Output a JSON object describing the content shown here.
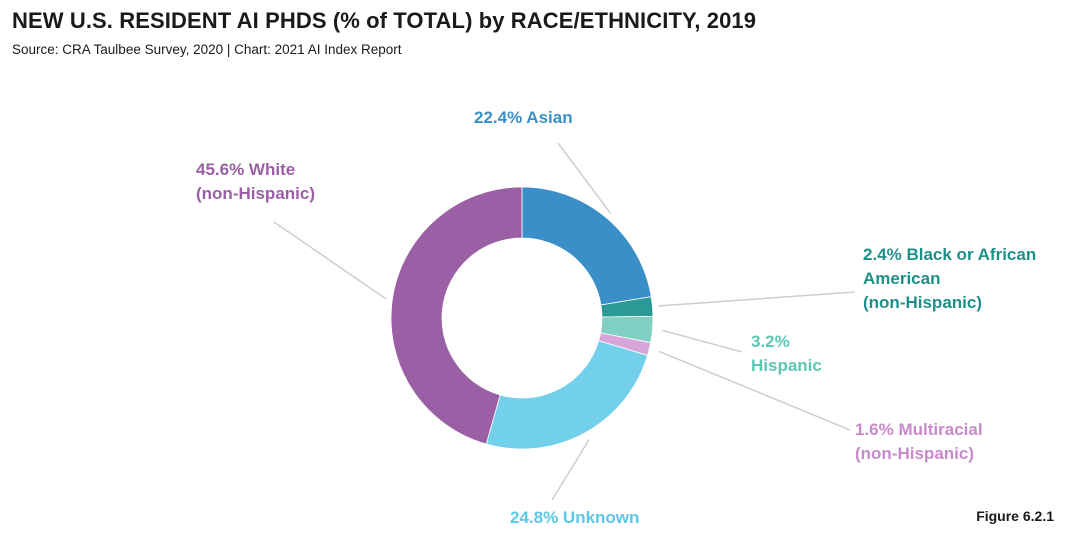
{
  "header": {
    "title": "NEW U.S. RESIDENT AI PHDS (% of TOTAL) by RACE/ETHNICITY, 2019",
    "subtitle": "Source: CRA Taulbee Survey, 2020 | Chart: 2021 AI Index Report"
  },
  "figure_label": "Figure 6.2.1",
  "chart_data": {
    "type": "pie",
    "variant": "donut",
    "title": "NEW U.S. RESIDENT AI PHDS (% of TOTAL) by RACE/ETHNICITY, 2019",
    "unit": "%",
    "slices": [
      {
        "name": "Asian",
        "value": 22.4,
        "color": "#3a8fc9",
        "label_lines": [
          "22.4% Asian"
        ]
      },
      {
        "name": "Black or African American (non-Hispanic)",
        "value": 2.4,
        "color": "#2a9a96",
        "label_lines": [
          "2.4% Black or African",
          "American",
          "(non-Hispanic)"
        ]
      },
      {
        "name": "Hispanic",
        "value": 3.2,
        "color": "#7fcfc2",
        "label_lines": [
          "3.2%",
          "Hispanic"
        ]
      },
      {
        "name": "Multiracial (non-Hispanic)",
        "value": 1.6,
        "color": "#d9a4d9",
        "label_lines": [
          "1.6% Multiracial",
          "(non-Hispanic)"
        ]
      },
      {
        "name": "Unknown",
        "value": 24.8,
        "color": "#72d0ea",
        "label_lines": [
          "24.8% Unknown"
        ]
      },
      {
        "name": "White (non-Hispanic)",
        "value": 45.6,
        "color": "#9b5fa5",
        "label_lines": [
          "45.6% White",
          "(non-Hispanic)"
        ]
      }
    ],
    "label_colors": {
      "Asian": "#3a8fc9",
      "Black or African American (non-Hispanic)": "#1f8f8a",
      "Hispanic": "#5ec7b4",
      "Multiracial (non-Hispanic)": "#c98acb",
      "Unknown": "#5cc7e6",
      "White (non-Hispanic)": "#9b5fa5"
    },
    "start": "12 o'clock",
    "direction": "clockwise"
  }
}
